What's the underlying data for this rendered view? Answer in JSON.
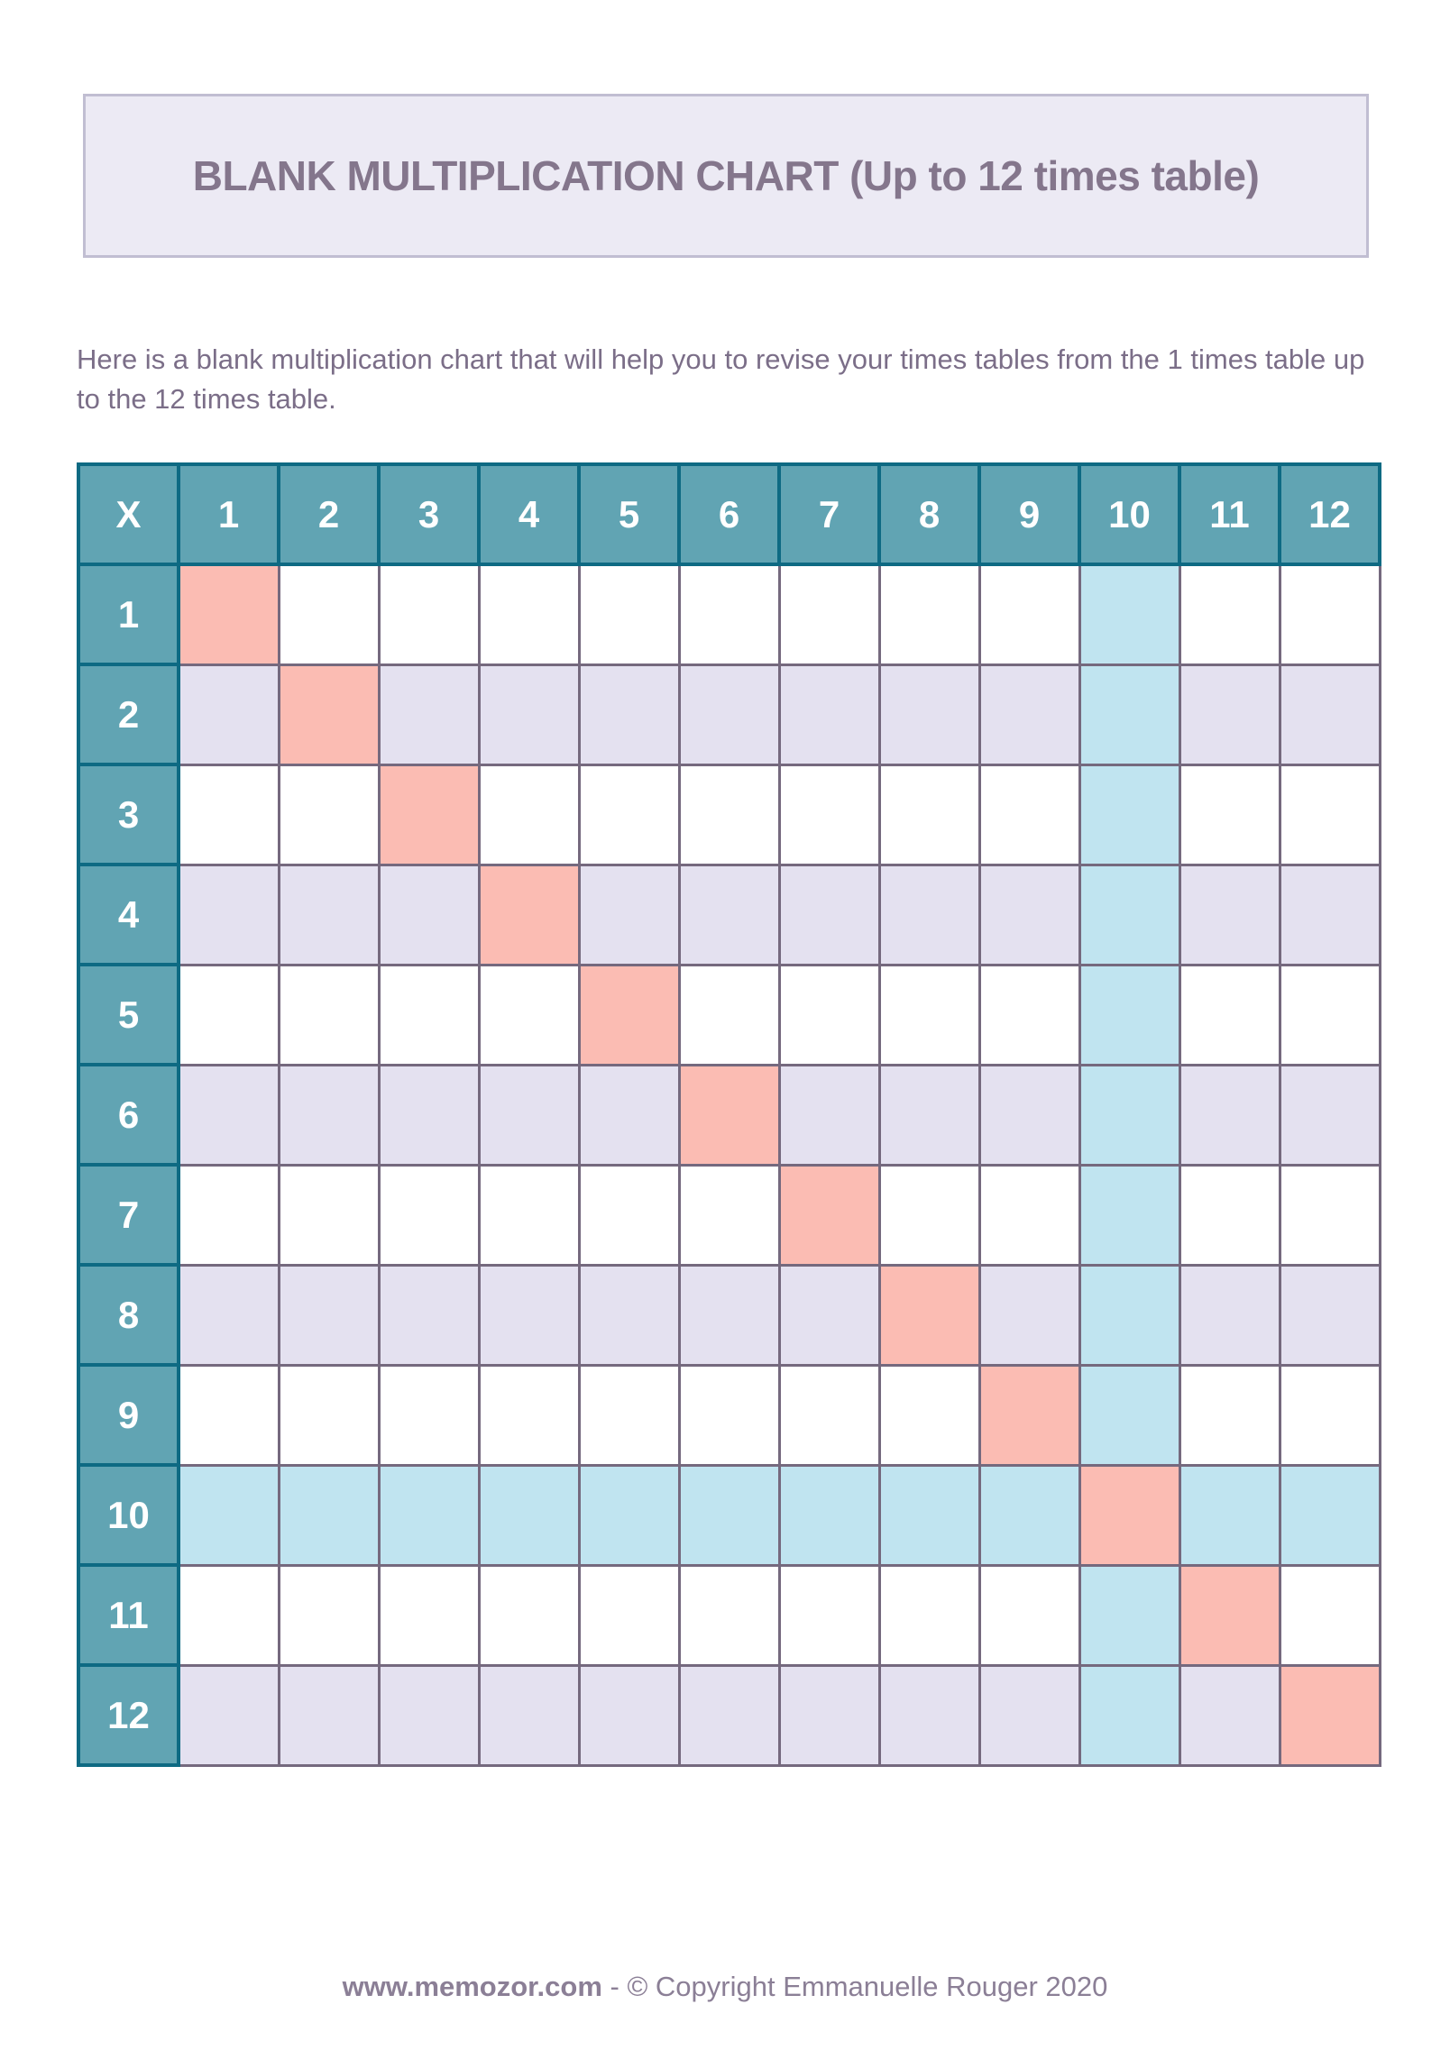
{
  "title_banner": {
    "text": "BLANK MULTIPLICATION CHART (Up to 12 times table)",
    "bg_color": "#eceaf4",
    "border_color": "#c1bed2",
    "text_color": "#84768c"
  },
  "intro": {
    "text": "Here is a blank multiplication chart that will help you to revise your times tables from the 1 times table up to the 12 times table."
  },
  "chart_data": {
    "type": "table",
    "title": "Blank multiplication chart up to 12 times table",
    "corner_label": "X",
    "column_headers": [
      "1",
      "2",
      "3",
      "4",
      "5",
      "6",
      "7",
      "8",
      "9",
      "10",
      "11",
      "12"
    ],
    "row_headers": [
      "1",
      "2",
      "3",
      "4",
      "5",
      "6",
      "7",
      "8",
      "9",
      "10",
      "11",
      "12"
    ],
    "body_cell_value": "",
    "legend": {
      "diagonal_cells": "square numbers highlighted pink",
      "row_10_and_column_10": "highlighted light blue",
      "even_rows": "highlighted lavender",
      "odd_rows": "white"
    },
    "highlight_colors": {
      "header_fill": "#61a4b3",
      "header_border": "#0e6a83",
      "header_text": "#ffffff",
      "grid_border": "#75697e",
      "diagonal": "#fbbcb3",
      "axis10": "#c0e4f0",
      "even_row": "#e4e1f0",
      "odd_row": "#ffffff"
    }
  },
  "footer": {
    "site": "www.memozor.com",
    "separator": " - ",
    "copyright": "© Copyright Emmanuelle Rouger 2020"
  }
}
